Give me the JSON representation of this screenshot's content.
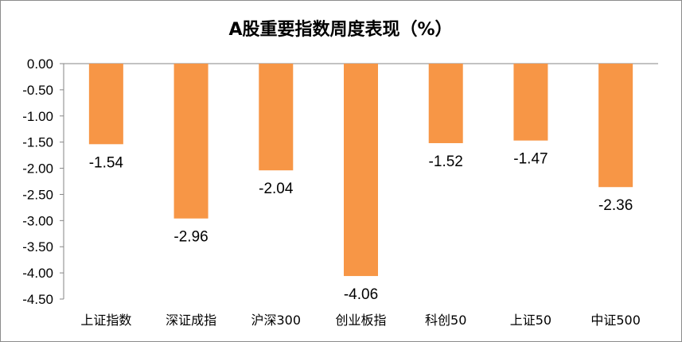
{
  "chart_data": {
    "type": "bar",
    "title": "A股重要指数周度表现（%）",
    "xlabel": "",
    "ylabel": "",
    "categories": [
      "上证指数",
      "深证成指",
      "沪深300",
      "创业板指",
      "科创50",
      "上证50",
      "中证500"
    ],
    "values": [
      -1.54,
      -2.96,
      -2.04,
      -4.06,
      -1.52,
      -1.47,
      -2.36
    ],
    "data_labels": [
      "-1.54",
      "-2.96",
      "-2.04",
      "-4.06",
      "-1.52",
      "-1.47",
      "-2.36"
    ],
    "ylim": [
      -4.5,
      0
    ],
    "yticks": [
      0,
      -0.5,
      -1,
      -1.5,
      -2,
      -2.5,
      -3,
      -3.5,
      -4,
      -4.5
    ],
    "ytick_labels": [
      "0.00",
      "-0.50",
      "-1.00",
      "-1.50",
      "-2.00",
      "-2.50",
      "-3.00",
      "-3.50",
      "-4.00",
      "-4.50"
    ],
    "grid": false,
    "legend": "none",
    "bar_color": "#F79646"
  }
}
